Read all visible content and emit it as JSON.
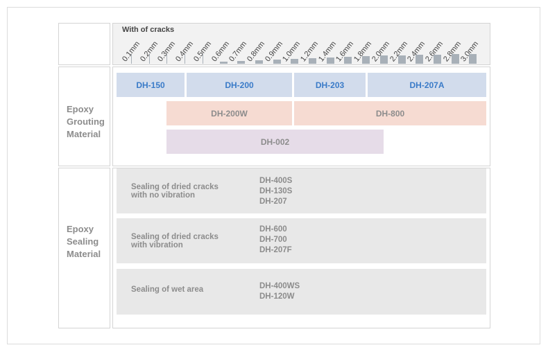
{
  "header": {
    "title": "With of cracks",
    "ticks": [
      "0.1mm",
      "0.2mm",
      "0.3mm",
      "0.4mm",
      "0.5mm",
      "0.6mm",
      "0.7mm",
      "0.8mm",
      "0.9mm",
      "1.0mm",
      "1.2mm",
      "1.4mm",
      "1.6mm",
      "1.8mm",
      "2.0mm",
      "2.2mm",
      "2.4mm",
      "2.6mm",
      "2.8mm",
      "3.0mm"
    ]
  },
  "grouting": {
    "label_lines": [
      "Epoxy",
      "Grouting",
      "Material"
    ],
    "row1": [
      "DH-150",
      "DH-200",
      "DH-203",
      "DH-207A"
    ],
    "row2": [
      "DH-200W",
      "DH-800"
    ],
    "row3": [
      "DH-002"
    ]
  },
  "sealing": {
    "label_lines": [
      "Epoxy",
      "Sealing",
      "Material"
    ],
    "groups": [
      {
        "desc": [
          "Sealing of dried cracks",
          "with no vibration"
        ],
        "products": [
          "DH-400S",
          "DH-130S",
          "DH-207"
        ]
      },
      {
        "desc": [
          "Sealing of dried cracks",
          "with vibration"
        ],
        "products": [
          "DH-600",
          "DH-700",
          "DH-207F"
        ]
      },
      {
        "desc": [
          "Sealing of wet area"
        ],
        "products": [
          "DH-400WS",
          "DH-120W"
        ]
      }
    ]
  },
  "colors": {
    "blue_bar": "#d2dcec",
    "blue_text": "#3a7bc8",
    "pink_bar": "#f6dbd2",
    "lavender_bar": "#e6dce8",
    "gray_box": "#e8e8e8",
    "tick_bar": "#a8b0b8"
  }
}
